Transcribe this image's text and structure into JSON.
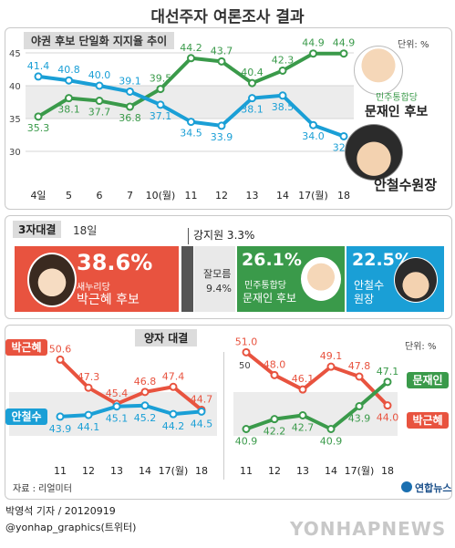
{
  "title": "대선주자 여론조사 결과",
  "chart_data": [
    {
      "type": "line",
      "title": "야권 후보 단일화 지지율 추이",
      "unit": "단위: %",
      "categories": [
        "4일",
        "5",
        "6",
        "7",
        "10(월)",
        "11",
        "12",
        "13",
        "14",
        "17(월)",
        "18"
      ],
      "ylim": [
        30,
        45
      ],
      "yticks": [
        "45",
        "40",
        "35",
        "30"
      ],
      "series": [
        {
          "name": "민주통합당 문재인 후보",
          "party": "민주통합당",
          "person": "문재인 후보",
          "color": "#3a9a4a",
          "values": [
            35.3,
            38.1,
            37.7,
            36.8,
            39.5,
            44.2,
            43.7,
            40.4,
            42.3,
            44.9,
            44.9
          ]
        },
        {
          "name": "안철수원장",
          "color": "#1a9fd6",
          "values": [
            41.4,
            40.8,
            40.0,
            39.1,
            37.1,
            34.5,
            33.9,
            38.1,
            38.5,
            34.0,
            32.3
          ]
        }
      ]
    },
    {
      "type": "bar",
      "title": "3자대결",
      "date": "18일",
      "segments": [
        {
          "name": "박근혜 후보",
          "party": "새누리당",
          "value": 38.6,
          "label": "38.6%",
          "color": "#e8533f"
        },
        {
          "name": "잘모름",
          "value": 9.4,
          "label": "9.4%",
          "color": "#e9e9e9"
        },
        {
          "name": "강지원",
          "value": 3.3,
          "label": "강지원 3.3%",
          "color": "#555555"
        },
        {
          "name": "문재인 후보",
          "party": "민주통합당",
          "value": 26.1,
          "label": "26.1%",
          "color": "#3a9a4a"
        },
        {
          "name": "안철수 원장",
          "value": 22.5,
          "label": "22.5%",
          "color": "#1a9fd6"
        }
      ]
    },
    {
      "type": "line",
      "title": "양자 대결",
      "categories": [
        "11",
        "12",
        "13",
        "14",
        "17(월)",
        "18"
      ],
      "series": [
        {
          "name": "박근혜",
          "color": "#e8533f",
          "values": [
            50.6,
            47.3,
            45.4,
            46.8,
            47.4,
            44.7
          ]
        },
        {
          "name": "안철수",
          "color": "#1a9fd6",
          "values": [
            43.9,
            44.1,
            45.1,
            45.2,
            44.2,
            44.5
          ]
        }
      ]
    },
    {
      "type": "line",
      "unit": "단위: %",
      "categories": [
        "11",
        "12",
        "13",
        "14",
        "17(월)",
        "18"
      ],
      "ytick": "50",
      "series": [
        {
          "name": "박근혜",
          "color": "#e8533f",
          "values": [
            51.0,
            48.0,
            46.1,
            49.1,
            47.8,
            44.0
          ]
        },
        {
          "name": "문재인",
          "color": "#3a9a4a",
          "values": [
            40.9,
            42.2,
            42.7,
            40.9,
            43.9,
            47.1
          ]
        }
      ]
    }
  ],
  "source": "자료 : 리얼미터",
  "byline": "박영석 기자 / 20120919",
  "twitter": "@yonhap_graphics(트위터)",
  "logo": "연합뉴스",
  "watermark": "YONHAPNEWS"
}
